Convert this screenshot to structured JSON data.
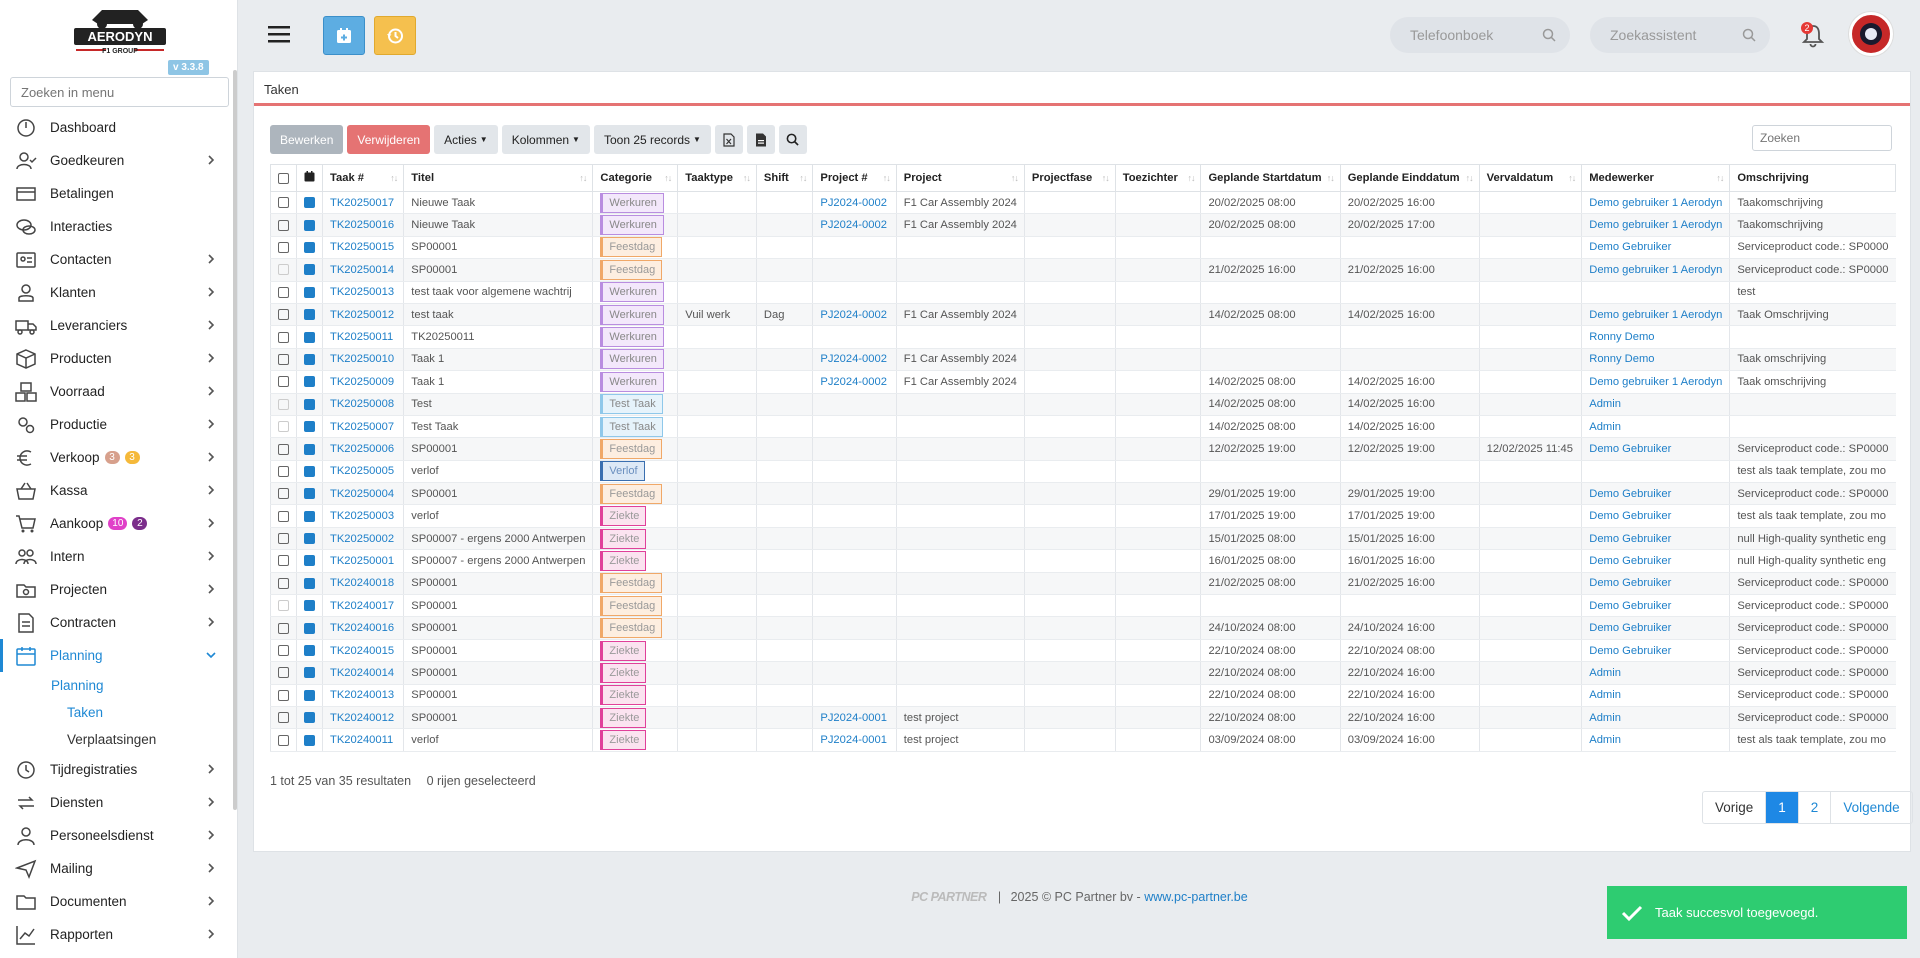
{
  "brand": {
    "name": "AERODYN",
    "sub": "F1 GROUP",
    "version": "v 3.3.8"
  },
  "menu_search_placeholder": "Zoeken in menu",
  "menu": [
    {
      "label": "Dashboard",
      "icon": "dashboard-icon",
      "chevron": false
    },
    {
      "label": "Goedkeuren",
      "icon": "user-check-icon",
      "chevron": true
    },
    {
      "label": "Betalingen",
      "icon": "payments-icon",
      "chevron": false
    },
    {
      "label": "Interacties",
      "icon": "chat-icon",
      "chevron": false
    },
    {
      "label": "Contacten",
      "icon": "contact-card-icon",
      "chevron": true
    },
    {
      "label": "Klanten",
      "icon": "customer-icon",
      "chevron": true
    },
    {
      "label": "Leveranciers",
      "icon": "truck-icon",
      "chevron": true
    },
    {
      "label": "Producten",
      "icon": "box-icon",
      "chevron": true
    },
    {
      "label": "Voorraad",
      "icon": "stock-icon",
      "chevron": true
    },
    {
      "label": "Productie",
      "icon": "gears-icon",
      "chevron": true
    },
    {
      "label": "Verkoop",
      "icon": "euro-icon",
      "chevron": true,
      "badges": [
        {
          "text": "3",
          "color": "#d7a08c"
        },
        {
          "text": "3",
          "color": "#f5b93a"
        }
      ]
    },
    {
      "label": "Kassa",
      "icon": "basket-icon",
      "chevron": true
    },
    {
      "label": "Aankoop",
      "icon": "cart-icon",
      "chevron": true,
      "badges": [
        {
          "text": "10",
          "color": "#e040c8"
        },
        {
          "text": "2",
          "color": "#7b2d8b"
        }
      ]
    },
    {
      "label": "Intern",
      "icon": "team-icon",
      "chevron": true
    },
    {
      "label": "Projecten",
      "icon": "project-icon",
      "chevron": true
    },
    {
      "label": "Contracten",
      "icon": "contract-icon",
      "chevron": true
    },
    {
      "label": "Planning",
      "icon": "calendar-icon",
      "chevron": true,
      "active": true
    }
  ],
  "submenu": [
    {
      "label": "Planning",
      "level": 1
    },
    {
      "label": "Taken",
      "level": 2,
      "active": true
    },
    {
      "label": "Verplaatsingen",
      "level": 2
    }
  ],
  "menu_bottom": [
    {
      "label": "Tijdregistraties",
      "icon": "clock-icon"
    },
    {
      "label": "Diensten",
      "icon": "sync-icon"
    },
    {
      "label": "Personeelsdienst",
      "icon": "staff-icon"
    },
    {
      "label": "Mailing",
      "icon": "send-icon"
    },
    {
      "label": "Documenten",
      "icon": "folder-icon"
    },
    {
      "label": "Rapporten",
      "icon": "chart-icon"
    }
  ],
  "topbar": {
    "phonebook_placeholder": "Telefoonboek",
    "assistant_placeholder": "Zoekassistent",
    "notifications": "2",
    "colors": {
      "calendar_btn": "#5dade2",
      "history_btn": "#f5c04e"
    }
  },
  "page": {
    "title": "Taken"
  },
  "toolbar": {
    "edit": "Bewerken",
    "delete": "Verwijderen",
    "actions": "Acties",
    "columns": "Kolommen",
    "show": "Toon 25 records",
    "search_placeholder": "Zoeken"
  },
  "columns": [
    "Taak #",
    "Titel",
    "Categorie",
    "Taaktype",
    "Shift",
    "Project #",
    "Project",
    "Projectfase",
    "Toezichter",
    "Geplande Startdatum",
    "Geplande Einddatum",
    "Vervaldatum",
    "Medewerker",
    "Omschrijving"
  ],
  "categories": {
    "Werkuren": {
      "border": "#b98de0",
      "bg": "#f3e8fb",
      "color": "#888"
    },
    "Feestdag": {
      "border": "#f0a868",
      "bg": "#fdeee0",
      "color": "#999"
    },
    "Test Taak": {
      "border": "#8fc8ea",
      "bg": "#e6f3fb",
      "color": "#888"
    },
    "Verlof": {
      "border": "#3a6fb0",
      "bg": "#dde9f6",
      "color": "#6a8fbf"
    },
    "Ziekte": {
      "border": "#e0409a",
      "bg": "#fbe3f0",
      "color": "#999"
    }
  },
  "rows": [
    {
      "taak": "TK20250017",
      "titel": "Nieuwe Taak",
      "cat": "Werkuren",
      "type": "",
      "shift": "",
      "pnr": "PJ2024-0002",
      "project": "F1 Car Assembly 2024",
      "fase": "",
      "toez": "",
      "start": "20/02/2025 08:00",
      "eind": "20/02/2025 16:00",
      "verv": "",
      "mw": "Demo gebruiker 1 Aerodyn",
      "oms": "Taakomschrijving",
      "cb": true
    },
    {
      "taak": "TK20250016",
      "titel": "Nieuwe Taak",
      "cat": "Werkuren",
      "type": "",
      "shift": "",
      "pnr": "PJ2024-0002",
      "project": "F1 Car Assembly 2024",
      "fase": "",
      "toez": "",
      "start": "20/02/2025 08:00",
      "eind": "20/02/2025 17:00",
      "verv": "",
      "mw": "Demo gebruiker 1 Aerodyn",
      "oms": "Taakomschrijving",
      "cb": true
    },
    {
      "taak": "TK20250015",
      "titel": "SP00001",
      "cat": "Feestdag",
      "type": "",
      "shift": "",
      "pnr": "",
      "project": "",
      "fase": "",
      "toez": "",
      "start": "",
      "eind": "",
      "verv": "",
      "mw": "Demo Gebruiker",
      "oms": "Serviceproduct code.: SP0000",
      "cb": true
    },
    {
      "taak": "TK20250014",
      "titel": "SP00001",
      "cat": "Feestdag",
      "type": "",
      "shift": "",
      "pnr": "",
      "project": "",
      "fase": "",
      "toez": "",
      "start": "21/02/2025 16:00",
      "eind": "21/02/2025 16:00",
      "verv": "",
      "mw": "Demo gebruiker 1 Aerodyn",
      "oms": "Serviceproduct code.: SP0000",
      "cb": false
    },
    {
      "taak": "TK20250013",
      "titel": "test taak voor algemene wachtrij",
      "cat": "Werkuren",
      "type": "",
      "shift": "",
      "pnr": "",
      "project": "",
      "fase": "",
      "toez": "",
      "start": "",
      "eind": "",
      "verv": "",
      "mw": "",
      "oms": "test",
      "cb": true
    },
    {
      "taak": "TK20250012",
      "titel": "test taak",
      "cat": "Werkuren",
      "type": "Vuil werk",
      "shift": "Dag",
      "pnr": "PJ2024-0002",
      "project": "F1 Car Assembly 2024",
      "fase": "",
      "toez": "",
      "start": "14/02/2025 08:00",
      "eind": "14/02/2025 16:00",
      "verv": "",
      "mw": "Demo gebruiker 1 Aerodyn",
      "oms": "Taak Omschrijving",
      "cb": true
    },
    {
      "taak": "TK20250011",
      "titel": "TK20250011",
      "cat": "Werkuren",
      "type": "",
      "shift": "",
      "pnr": "",
      "project": "",
      "fase": "",
      "toez": "",
      "start": "",
      "eind": "",
      "verv": "",
      "mw": "Ronny Demo",
      "oms": "",
      "cb": true
    },
    {
      "taak": "TK20250010",
      "titel": "Taak 1",
      "cat": "Werkuren",
      "type": "",
      "shift": "",
      "pnr": "PJ2024-0002",
      "project": "F1 Car Assembly 2024",
      "fase": "",
      "toez": "",
      "start": "",
      "eind": "",
      "verv": "",
      "mw": "Ronny Demo",
      "oms": "Taak omschrijving",
      "cb": true
    },
    {
      "taak": "TK20250009",
      "titel": "Taak 1",
      "cat": "Werkuren",
      "type": "",
      "shift": "",
      "pnr": "PJ2024-0002",
      "project": "F1 Car Assembly 2024",
      "fase": "",
      "toez": "",
      "start": "14/02/2025 08:00",
      "eind": "14/02/2025 16:00",
      "verv": "",
      "mw": "Demo gebruiker 1 Aerodyn",
      "oms": "Taak omschrijving",
      "cb": true
    },
    {
      "taak": "TK20250008",
      "titel": "Test",
      "cat": "Test Taak",
      "type": "",
      "shift": "",
      "pnr": "",
      "project": "",
      "fase": "",
      "toez": "",
      "start": "14/02/2025 08:00",
      "eind": "14/02/2025 16:00",
      "verv": "",
      "mw": "Admin",
      "oms": "",
      "cb": false
    },
    {
      "taak": "TK20250007",
      "titel": "Test Taak",
      "cat": "Test Taak",
      "type": "",
      "shift": "",
      "pnr": "",
      "project": "",
      "fase": "",
      "toez": "",
      "start": "14/02/2025 08:00",
      "eind": "14/02/2025 16:00",
      "verv": "",
      "mw": "Admin",
      "oms": "",
      "cb": false
    },
    {
      "taak": "TK20250006",
      "titel": "SP00001",
      "cat": "Feestdag",
      "type": "",
      "shift": "",
      "pnr": "",
      "project": "",
      "fase": "",
      "toez": "",
      "start": "12/02/2025 19:00",
      "eind": "12/02/2025 19:00",
      "verv": "12/02/2025 11:45",
      "mw": "Demo Gebruiker",
      "oms": "Serviceproduct code.: SP0000",
      "cb": true
    },
    {
      "taak": "TK20250005",
      "titel": "verlof",
      "cat": "Verlof",
      "type": "",
      "shift": "",
      "pnr": "",
      "project": "",
      "fase": "",
      "toez": "",
      "start": "",
      "eind": "",
      "verv": "",
      "mw": "",
      "oms": "test als taak template, zou mo",
      "cb": true
    },
    {
      "taak": "TK20250004",
      "titel": "SP00001",
      "cat": "Feestdag",
      "type": "",
      "shift": "",
      "pnr": "",
      "project": "",
      "fase": "",
      "toez": "",
      "start": "29/01/2025 19:00",
      "eind": "29/01/2025 19:00",
      "verv": "",
      "mw": "Demo Gebruiker",
      "oms": "Serviceproduct code.: SP0000",
      "cb": true
    },
    {
      "taak": "TK20250003",
      "titel": "verlof",
      "cat": "Ziekte",
      "type": "",
      "shift": "",
      "pnr": "",
      "project": "",
      "fase": "",
      "toez": "",
      "start": "17/01/2025 19:00",
      "eind": "17/01/2025 19:00",
      "verv": "",
      "mw": "Demo Gebruiker",
      "oms": "test als taak template, zou mo",
      "cb": true
    },
    {
      "taak": "TK20250002",
      "titel": "SP00007 - ergens 2000 Antwerpen",
      "cat": "Ziekte",
      "type": "",
      "shift": "",
      "pnr": "",
      "project": "",
      "fase": "",
      "toez": "",
      "start": "15/01/2025 08:00",
      "eind": "15/01/2025 16:00",
      "verv": "",
      "mw": "Demo Gebruiker",
      "oms": "null High-quality synthetic eng",
      "cb": true
    },
    {
      "taak": "TK20250001",
      "titel": "SP00007 - ergens 2000 Antwerpen",
      "cat": "Ziekte",
      "type": "",
      "shift": "",
      "pnr": "",
      "project": "",
      "fase": "",
      "toez": "",
      "start": "16/01/2025 08:00",
      "eind": "16/01/2025 16:00",
      "verv": "",
      "mw": "Demo Gebruiker",
      "oms": "null High-quality synthetic eng",
      "cb": true
    },
    {
      "taak": "TK20240018",
      "titel": "SP00001",
      "cat": "Feestdag",
      "type": "",
      "shift": "",
      "pnr": "",
      "project": "",
      "fase": "",
      "toez": "",
      "start": "21/02/2025 08:00",
      "eind": "21/02/2025 16:00",
      "verv": "",
      "mw": "Demo Gebruiker",
      "oms": "Serviceproduct code.: SP0000",
      "cb": true
    },
    {
      "taak": "TK20240017",
      "titel": "SP00001",
      "cat": "Feestdag",
      "type": "",
      "shift": "",
      "pnr": "",
      "project": "",
      "fase": "",
      "toez": "",
      "start": "",
      "eind": "",
      "verv": "",
      "mw": "Demo Gebruiker",
      "oms": "Serviceproduct code.: SP0000",
      "cb": false
    },
    {
      "taak": "TK20240016",
      "titel": "SP00001",
      "cat": "Feestdag",
      "type": "",
      "shift": "",
      "pnr": "",
      "project": "",
      "fase": "",
      "toez": "",
      "start": "24/10/2024 08:00",
      "eind": "24/10/2024 16:00",
      "verv": "",
      "mw": "Demo Gebruiker",
      "oms": "Serviceproduct code.: SP0000",
      "cb": true
    },
    {
      "taak": "TK20240015",
      "titel": "SP00001",
      "cat": "Ziekte",
      "type": "",
      "shift": "",
      "pnr": "",
      "project": "",
      "fase": "",
      "toez": "",
      "start": "22/10/2024 08:00",
      "eind": "22/10/2024 08:00",
      "verv": "",
      "mw": "Demo Gebruiker",
      "oms": "Serviceproduct code.: SP0000",
      "cb": true
    },
    {
      "taak": "TK20240014",
      "titel": "SP00001",
      "cat": "Ziekte",
      "type": "",
      "shift": "",
      "pnr": "",
      "project": "",
      "fase": "",
      "toez": "",
      "start": "22/10/2024 08:00",
      "eind": "22/10/2024 16:00",
      "verv": "",
      "mw": "Admin",
      "oms": "Serviceproduct code.: SP0000",
      "cb": true
    },
    {
      "taak": "TK20240013",
      "titel": "SP00001",
      "cat": "Ziekte",
      "type": "",
      "shift": "",
      "pnr": "",
      "project": "",
      "fase": "",
      "toez": "",
      "start": "22/10/2024 08:00",
      "eind": "22/10/2024 16:00",
      "verv": "",
      "mw": "Admin",
      "oms": "Serviceproduct code.: SP0000",
      "cb": true
    },
    {
      "taak": "TK20240012",
      "titel": "SP00001",
      "cat": "Ziekte",
      "type": "",
      "shift": "",
      "pnr": "PJ2024-0001",
      "project": "test project",
      "fase": "",
      "toez": "",
      "start": "22/10/2024 08:00",
      "eind": "22/10/2024 16:00",
      "verv": "",
      "mw": "Admin",
      "oms": "Serviceproduct code.: SP0000",
      "cb": true
    },
    {
      "taak": "TK20240011",
      "titel": "verlof",
      "cat": "Ziekte",
      "type": "",
      "shift": "",
      "pnr": "PJ2024-0001",
      "project": "test project",
      "fase": "",
      "toez": "",
      "start": "03/09/2024 08:00",
      "eind": "03/09/2024 16:00",
      "verv": "",
      "mw": "Admin",
      "oms": "test als taak template, zou mo",
      "cb": true
    }
  ],
  "table_info": {
    "range": "1 tot 25 van 35 resultaten",
    "selected": "0 rijen geselecteerd"
  },
  "pager": {
    "prev": "Vorige",
    "pages": [
      "1",
      "2"
    ],
    "next": "Volgende"
  },
  "footer": {
    "brand": "PC PARTNER",
    "text": "2025 © PC Partner bv -",
    "link": "www.pc-partner.be"
  },
  "toast": "Taak succesvol toegevoegd."
}
